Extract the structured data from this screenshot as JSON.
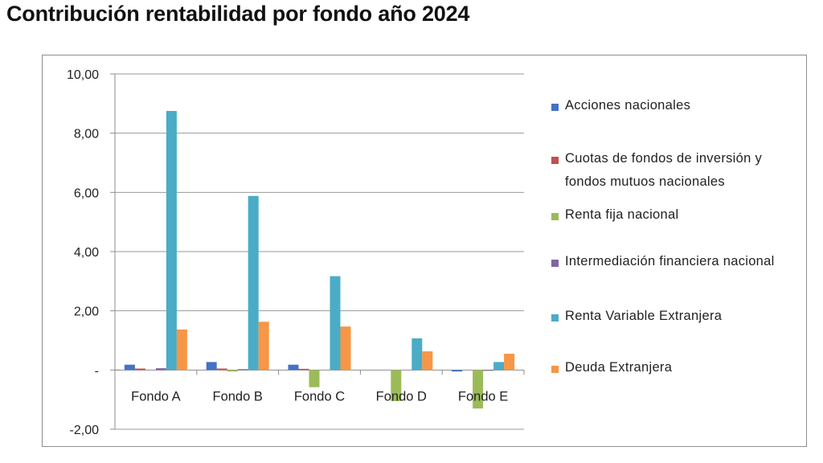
{
  "page_title": "Contribución rentabilidad por fondo año 2024",
  "chart_data": {
    "type": "bar",
    "title": "Contribución rentabilidad por fondo año 2024",
    "xlabel": "",
    "ylabel": "",
    "ylim": [
      -2,
      10
    ],
    "yticks": [
      10,
      8,
      6,
      4,
      2,
      0,
      -2
    ],
    "ytick_labels": [
      "10,00",
      "8,00",
      "6,00",
      "4,00",
      "2,00",
      "-",
      "-2,00"
    ],
    "grid": true,
    "legend_position": "right",
    "categories": [
      "Fondo A",
      "Fondo B",
      "Fondo C",
      "Fondo D",
      "Fondo E"
    ],
    "series": [
      {
        "name": "Acciones nacionales",
        "color": "#4472c4",
        "values": [
          0.18,
          0.27,
          0.18,
          0.0,
          -0.05
        ]
      },
      {
        "name": "Cuotas de fondos de inversión y fondos mutuos nacionales",
        "color": "#c0504d",
        "values": [
          0.05,
          0.05,
          0.04,
          0.0,
          0.0
        ]
      },
      {
        "name": "Renta fija nacional",
        "color": "#9bbb59",
        "values": [
          0.0,
          -0.05,
          -0.58,
          -1.05,
          -1.3
        ]
      },
      {
        "name": "Intermediación financiera nacional",
        "color": "#8064a2",
        "values": [
          0.06,
          0.03,
          0.0,
          0.0,
          -0.02
        ]
      },
      {
        "name": "Renta Variable Extranjera",
        "color": "#4bacc6",
        "values": [
          8.75,
          5.88,
          3.17,
          1.07,
          0.27
        ]
      },
      {
        "name": "Deuda Extranjera",
        "color": "#f79646",
        "values": [
          1.37,
          1.63,
          1.47,
          0.63,
          0.55
        ]
      }
    ]
  }
}
